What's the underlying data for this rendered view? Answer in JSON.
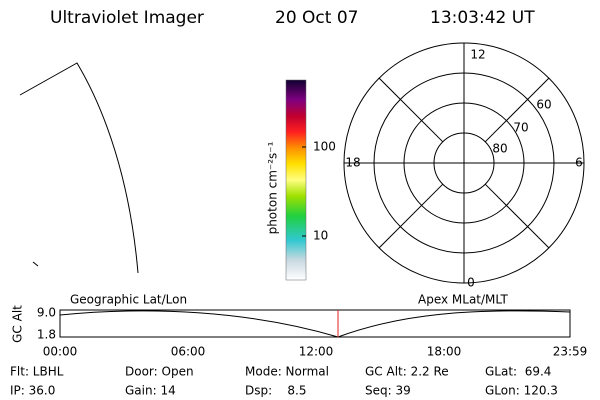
{
  "header": {
    "title": "Ultraviolet Imager",
    "date": "20 Oct 07",
    "time": "13:03:42 UT"
  },
  "colorbar": {
    "label": "photon cm⁻²s⁻¹",
    "ticks": [
      "100",
      "10"
    ]
  },
  "polar": {
    "mlt_labels": [
      "12",
      "18",
      "6",
      "0"
    ],
    "lat_labels": [
      "60",
      "70",
      "80"
    ]
  },
  "timeline": {
    "left_title": "Geographic Lat/Lon",
    "right_title": "Apex MLat/MLT",
    "axis_label": "GC Alt",
    "y_ticks": [
      "9.0",
      "1.8"
    ],
    "x_ticks": [
      "00:00",
      "06:00",
      "12:00",
      "18:00",
      "23:59"
    ]
  },
  "info": {
    "rows": [
      [
        "Flt: LBHL",
        "Door: Open",
        "Mode: Normal",
        "GC Alt: 2.2 Re",
        "GLat:  69.4"
      ],
      [
        "IP: 36.0",
        "Gain: 14",
        "Dsp:    8.5",
        "Seq: 39",
        "GLon: 120.3"
      ]
    ]
  }
}
